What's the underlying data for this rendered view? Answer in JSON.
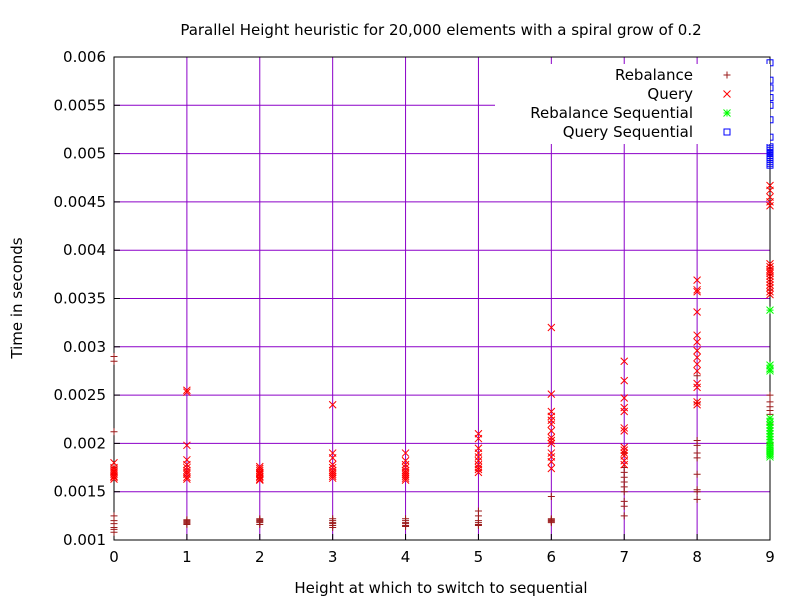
{
  "chart_data": {
    "type": "scatter",
    "title": "Parallel Height heuristic for 20,000 elements with a spiral grow of 0.2",
    "xlabel": "Height at which to switch to sequential",
    "ylabel": "Time in seconds",
    "xlim": [
      0,
      9
    ],
    "ylim": [
      0.001,
      0.006
    ],
    "xticks": [
      0,
      1,
      2,
      3,
      4,
      5,
      6,
      7,
      8,
      9
    ],
    "xtick_labels": [
      "0",
      "1",
      "2",
      "3",
      "4",
      "5",
      "6",
      "7",
      "8",
      "9"
    ],
    "yticks": [
      0.001,
      0.0015,
      0.002,
      0.0025,
      0.003,
      0.0035,
      0.004,
      0.0045,
      0.005,
      0.0055,
      0.006
    ],
    "ytick_labels": [
      "0.001",
      "0.0015",
      "0.002",
      "0.0025",
      "0.003",
      "0.0035",
      "0.004",
      "0.0045",
      "0.005",
      "0.0055",
      "0.006"
    ],
    "grid": true,
    "grid_color": "#8b00c8",
    "legend_position": "top-right",
    "series": [
      {
        "name": "Rebalance",
        "marker": "plus",
        "color": "#9b1b1b",
        "x": [
          0,
          0,
          0,
          0,
          0,
          0,
          0,
          0,
          0,
          0,
          0,
          1,
          1,
          1,
          1,
          1,
          1,
          2,
          2,
          2,
          2,
          2,
          2,
          3,
          3,
          3,
          3,
          3,
          3,
          4,
          4,
          4,
          4,
          4,
          4,
          5,
          5,
          5,
          5,
          5,
          5,
          6,
          6,
          6,
          6,
          6,
          6,
          7,
          7,
          7,
          7,
          7,
          7,
          7,
          7,
          7,
          7,
          8,
          8,
          8,
          8,
          8,
          8,
          8,
          8,
          8,
          8,
          9,
          9,
          9,
          9,
          9,
          9,
          9,
          9
        ],
        "y": [
          0.0029,
          0.00285,
          0.00212,
          0.00175,
          0.00168,
          0.00125,
          0.0012,
          0.00117,
          0.00113,
          0.00111,
          0.00108,
          0.00121,
          0.0012,
          0.00119,
          0.00118,
          0.00117,
          0.00116,
          0.00122,
          0.00121,
          0.0012,
          0.00119,
          0.00118,
          0.00116,
          0.00122,
          0.0012,
          0.00118,
          0.00117,
          0.00115,
          0.00113,
          0.00122,
          0.0012,
          0.00118,
          0.00117,
          0.00115,
          0.00114,
          0.0013,
          0.00125,
          0.0012,
          0.00118,
          0.00116,
          0.00115,
          0.00145,
          0.00122,
          0.00121,
          0.0012,
          0.00119,
          0.00118,
          0.0019,
          0.00175,
          0.0017,
          0.00165,
          0.0016,
          0.00155,
          0.0015,
          0.0014,
          0.00135,
          0.00125,
          0.0027,
          0.00242,
          0.00203,
          0.00198,
          0.0019,
          0.00185,
          0.00168,
          0.00152,
          0.0015,
          0.00142,
          0.0025,
          0.00243,
          0.00238,
          0.00234,
          0.0023,
          0.0022,
          0.0021,
          0.002
        ]
      },
      {
        "name": "Query",
        "marker": "cross",
        "color": "#ff0000",
        "x": [
          0,
          0,
          0,
          0,
          0,
          0,
          0,
          0,
          0,
          1,
          1,
          1,
          1,
          1,
          1,
          1,
          1,
          1,
          1,
          1,
          2,
          2,
          2,
          2,
          2,
          2,
          2,
          2,
          2,
          2,
          3,
          3,
          3,
          3,
          3,
          3,
          3,
          3,
          3,
          3,
          4,
          4,
          4,
          4,
          4,
          4,
          4,
          4,
          4,
          4,
          5,
          5,
          5,
          5,
          5,
          5,
          5,
          5,
          5,
          5,
          6,
          6,
          6,
          6,
          6,
          6,
          6,
          6,
          6,
          6,
          6,
          6,
          6,
          6,
          7,
          7,
          7,
          7,
          7,
          7,
          7,
          7,
          7,
          7,
          7,
          7,
          7,
          8,
          8,
          8,
          8,
          8,
          8,
          8,
          8,
          8,
          8,
          8,
          8,
          8,
          8,
          9,
          9,
          9,
          9,
          9,
          9,
          9,
          9,
          9,
          9,
          9,
          9,
          9,
          9,
          9,
          9,
          9
        ],
        "y": [
          0.0018,
          0.00175,
          0.00173,
          0.00171,
          0.0017,
          0.00168,
          0.00166,
          0.00165,
          0.00163,
          0.00255,
          0.00253,
          0.00198,
          0.00183,
          0.00178,
          0.00175,
          0.00172,
          0.0017,
          0.00168,
          0.00165,
          0.00163,
          0.00176,
          0.00174,
          0.00172,
          0.0017,
          0.00169,
          0.00168,
          0.00166,
          0.00165,
          0.00163,
          0.00162,
          0.0024,
          0.0019,
          0.00185,
          0.00178,
          0.00175,
          0.00172,
          0.0017,
          0.00168,
          0.00166,
          0.00164,
          0.0019,
          0.00182,
          0.00178,
          0.00175,
          0.00172,
          0.0017,
          0.00168,
          0.00166,
          0.00164,
          0.00162,
          0.0021,
          0.00205,
          0.00195,
          0.0019,
          0.00186,
          0.00182,
          0.00178,
          0.00175,
          0.00173,
          0.0017,
          0.0032,
          0.00251,
          0.00233,
          0.00228,
          0.00224,
          0.0022,
          0.00213,
          0.00206,
          0.00203,
          0.002,
          0.0019,
          0.00186,
          0.00181,
          0.00174,
          0.00285,
          0.00265,
          0.00247,
          0.00237,
          0.00233,
          0.00216,
          0.00213,
          0.00196,
          0.00193,
          0.0019,
          0.00187,
          0.00182,
          0.00178,
          0.00369,
          0.00359,
          0.00357,
          0.00336,
          0.00312,
          0.00305,
          0.00296,
          0.00289,
          0.00282,
          0.00275,
          0.00262,
          0.00258,
          0.00243,
          0.0024,
          0.00467,
          0.00462,
          0.00455,
          0.0045,
          0.00446,
          0.00386,
          0.00383,
          0.0038,
          0.00378,
          0.00376,
          0.00373,
          0.0037,
          0.00367,
          0.00364,
          0.00361,
          0.00357,
          0.00354
        ]
      },
      {
        "name": "Rebalance Sequential",
        "marker": "star",
        "color": "#00ff00",
        "x": [
          9,
          9,
          9,
          9,
          9,
          9,
          9,
          9,
          9,
          9,
          9,
          9,
          9,
          9,
          9,
          9,
          9,
          9,
          9,
          9
        ],
        "y": [
          0.00338,
          0.00281,
          0.00277,
          0.00275,
          0.00226,
          0.00222,
          0.00219,
          0.00216,
          0.00213,
          0.0021,
          0.00207,
          0.00204,
          0.00201,
          0.00198,
          0.00196,
          0.00194,
          0.00192,
          0.0019,
          0.00188,
          0.00186
        ]
      },
      {
        "name": "Query Sequential",
        "marker": "square",
        "color": "#0000ff",
        "x": [
          9,
          9,
          9,
          9,
          9,
          9,
          9,
          9,
          9,
          9,
          9,
          9,
          9,
          9,
          9,
          9,
          9,
          9
        ],
        "y": [
          0.00594,
          0.00576,
          0.00568,
          0.00558,
          0.0055,
          0.00535,
          0.00517,
          0.00507,
          0.00505,
          0.00503,
          0.00501,
          0.005,
          0.00498,
          0.00496,
          0.00494,
          0.00492,
          0.0049,
          0.00488
        ]
      }
    ]
  }
}
